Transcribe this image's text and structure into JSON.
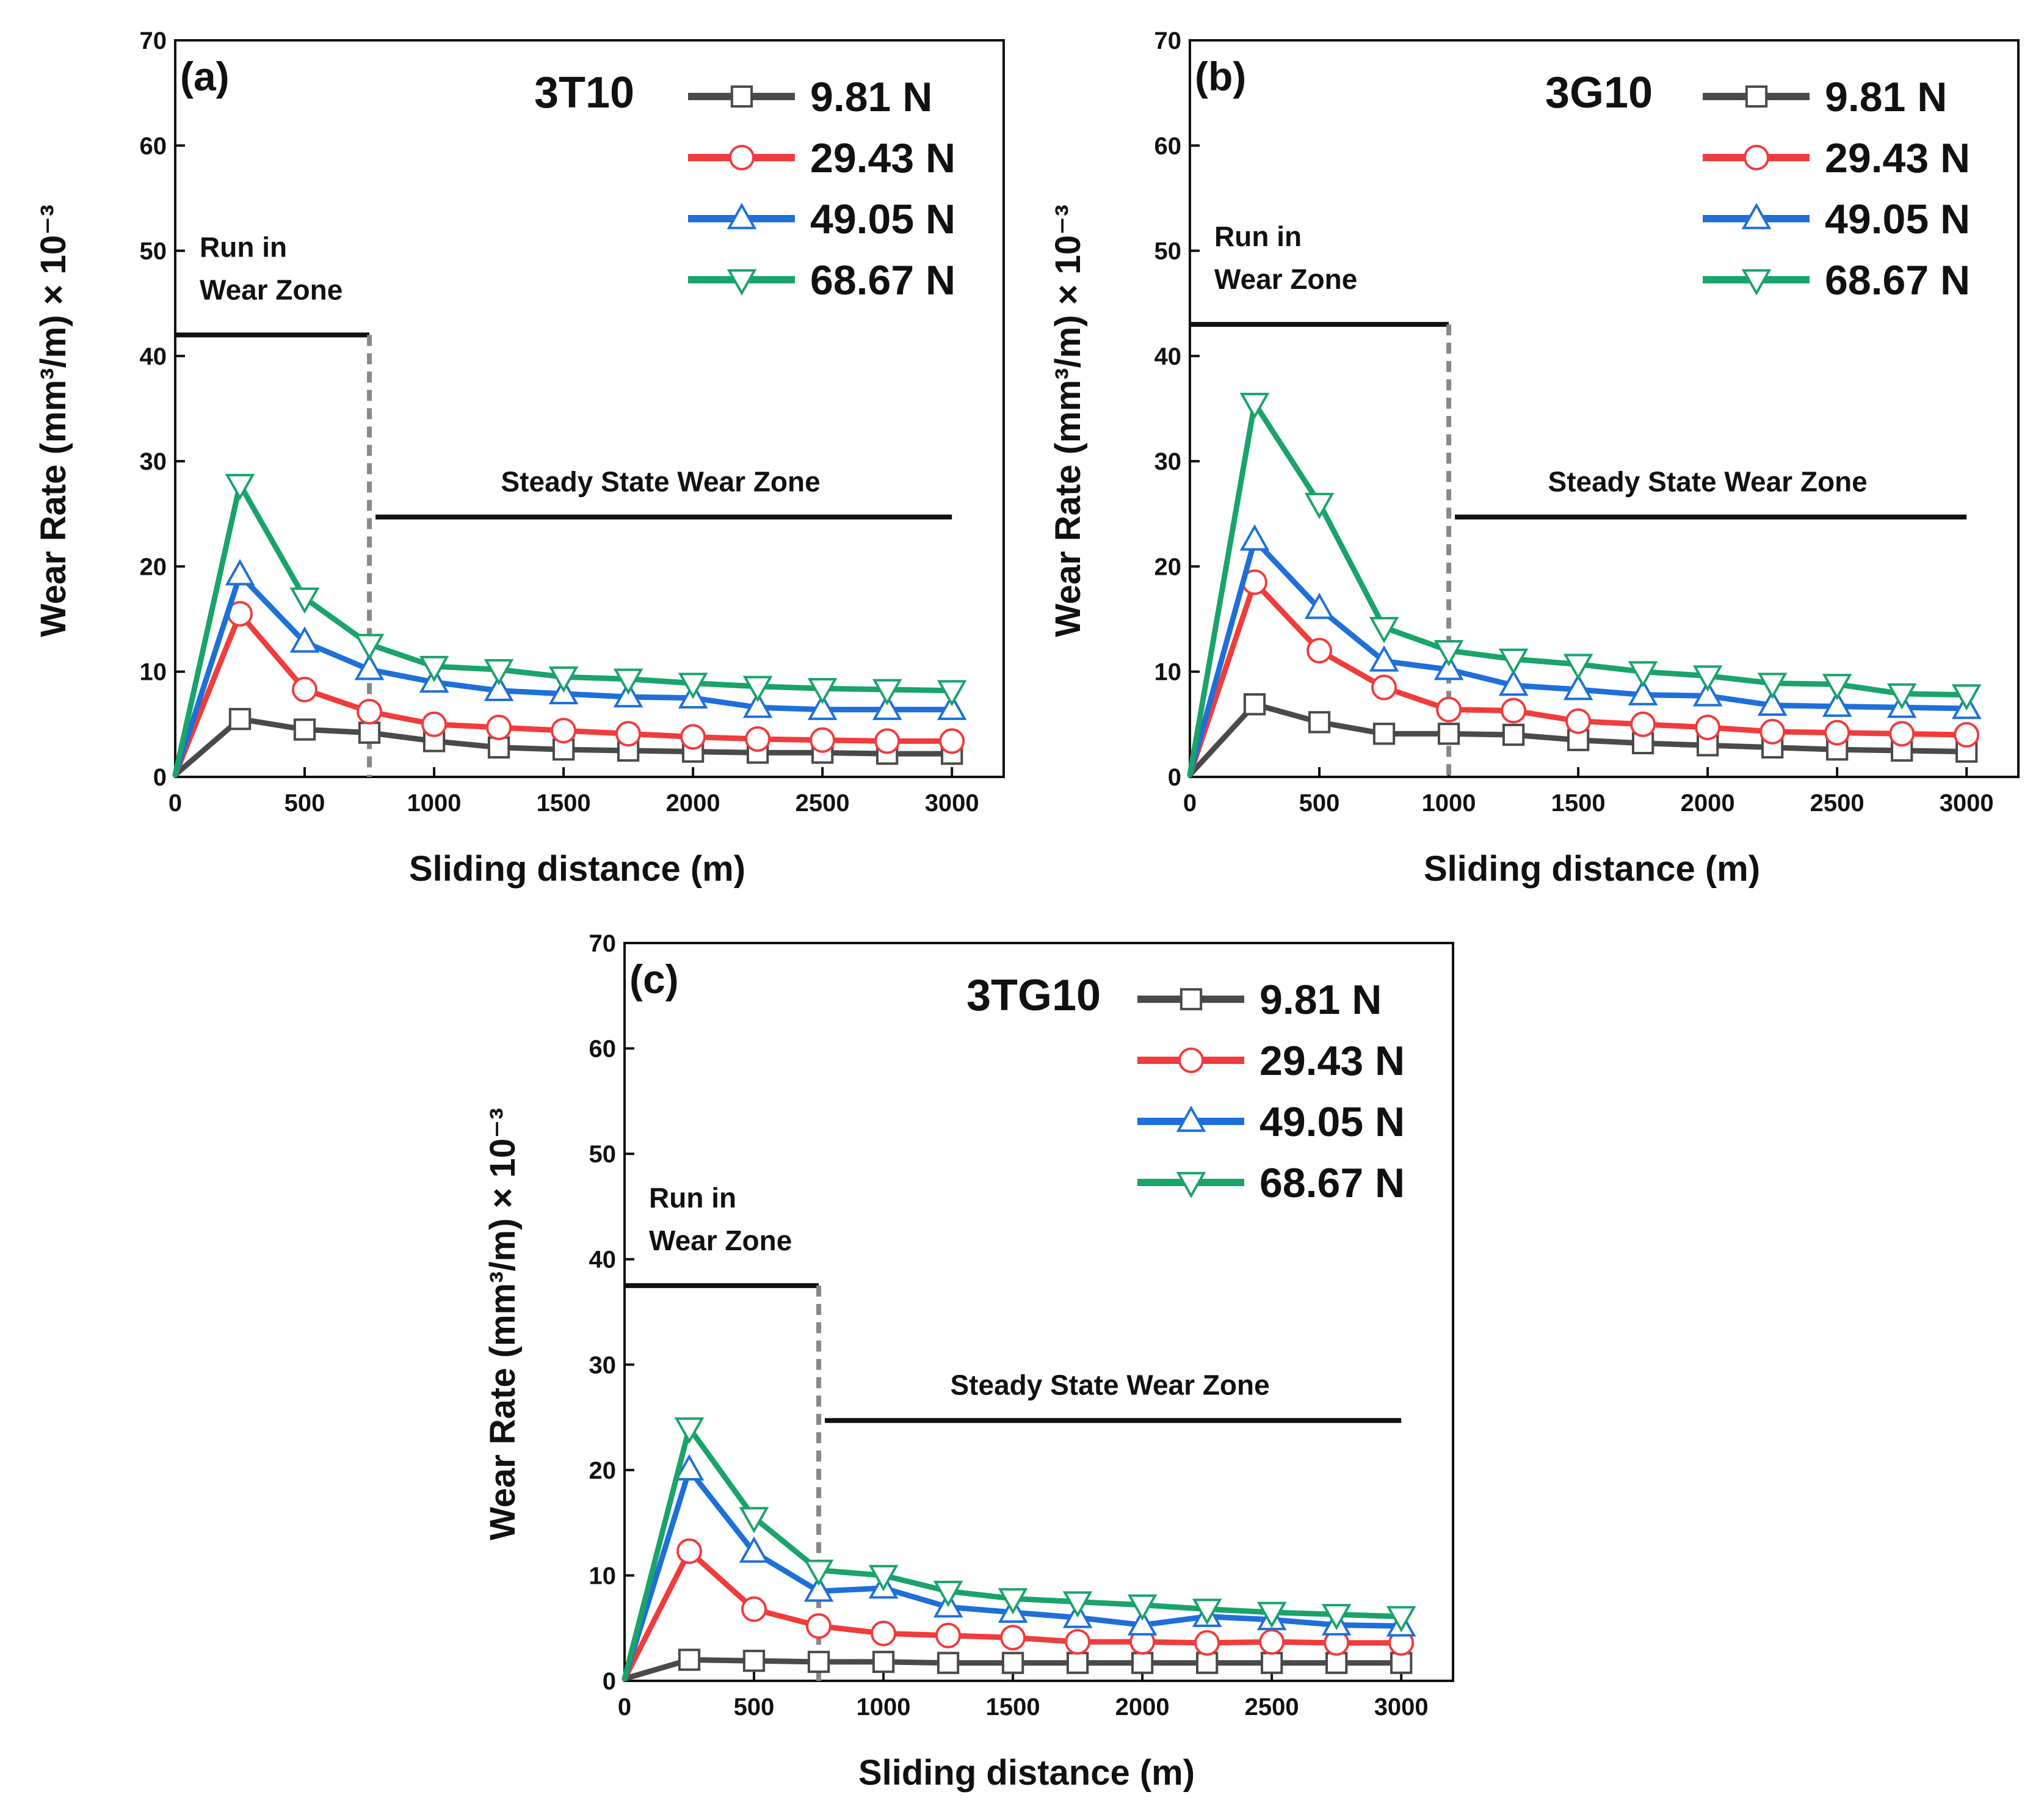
{
  "chart_data": [
    {
      "type": "line",
      "panel_label": "(a)",
      "sample": "3T10",
      "xlabel": "Sliding distance (m)",
      "ylabel": "Wear Rate (mm³/m) × 10⁻³",
      "xlim": [
        0,
        3200
      ],
      "ylim": [
        0,
        70
      ],
      "xticks": [
        0,
        500,
        1000,
        1500,
        2000,
        2500,
        3000
      ],
      "yticks": [
        0,
        10,
        20,
        30,
        40,
        50,
        60,
        70
      ],
      "x": [
        0,
        250,
        500,
        750,
        1000,
        1250,
        1500,
        1750,
        2000,
        2250,
        2500,
        2750,
        3000
      ],
      "series": [
        {
          "name": "9.81 N",
          "color": "#4a4a4a",
          "marker": "square",
          "values": [
            0.2,
            5.5,
            4.5,
            4.2,
            3.4,
            2.8,
            2.6,
            2.5,
            2.4,
            2.3,
            2.3,
            2.2,
            2.2
          ]
        },
        {
          "name": "29.43 N",
          "color": "#f03c3c",
          "marker": "circle",
          "values": [
            0.2,
            15.5,
            8.3,
            6.2,
            5.0,
            4.7,
            4.4,
            4.1,
            3.8,
            3.6,
            3.5,
            3.4,
            3.4
          ]
        },
        {
          "name": "49.05 N",
          "color": "#1e6fd9",
          "marker": "triangle",
          "values": [
            0.2,
            19.2,
            12.8,
            10.2,
            9.0,
            8.2,
            7.9,
            7.6,
            7.5,
            6.6,
            6.4,
            6.4,
            6.4
          ]
        },
        {
          "name": "68.67 N",
          "color": "#1aa36b",
          "marker": "tri-down",
          "values": [
            0.2,
            27.8,
            17.0,
            12.6,
            10.5,
            10.2,
            9.5,
            9.3,
            8.9,
            8.6,
            8.4,
            8.3,
            8.2
          ]
        }
      ],
      "zones": {
        "run_in_label": [
          "Run in",
          "Wear Zone"
        ],
        "steady_label": "Steady State Wear Zone",
        "boundary_x": 750,
        "run_in_line_y": 42,
        "steady_line_y": 24.7,
        "steady_line_end_x": 3000
      }
    },
    {
      "type": "line",
      "panel_label": "(b)",
      "sample": "3G10",
      "xlabel": "Sliding distance (m)",
      "ylabel": "Wear Rate (mm³/m) × 10⁻³",
      "xlim": [
        0,
        3200
      ],
      "ylim": [
        0,
        70
      ],
      "xticks": [
        0,
        500,
        1000,
        1500,
        2000,
        2500,
        3000
      ],
      "yticks": [
        0,
        10,
        20,
        30,
        40,
        50,
        60,
        70
      ],
      "x": [
        0,
        250,
        500,
        750,
        1000,
        1250,
        1500,
        1750,
        2000,
        2250,
        2500,
        2750,
        3000
      ],
      "series": [
        {
          "name": "9.81 N",
          "color": "#4a4a4a",
          "marker": "square",
          "values": [
            0.2,
            6.9,
            5.2,
            4.1,
            4.1,
            4.0,
            3.5,
            3.2,
            3.0,
            2.8,
            2.6,
            2.5,
            2.4
          ]
        },
        {
          "name": "29.43 N",
          "color": "#f03c3c",
          "marker": "circle",
          "values": [
            0.2,
            18.5,
            12.0,
            8.5,
            6.4,
            6.3,
            5.3,
            5.0,
            4.7,
            4.3,
            4.2,
            4.1,
            4.0
          ]
        },
        {
          "name": "49.05 N",
          "color": "#1e6fd9",
          "marker": "triangle",
          "values": [
            0.2,
            22.5,
            16.0,
            11.0,
            10.2,
            8.7,
            8.3,
            7.8,
            7.7,
            6.8,
            6.7,
            6.6,
            6.5
          ]
        },
        {
          "name": "68.67 N",
          "color": "#1aa36b",
          "marker": "tri-down",
          "values": [
            0.2,
            35.5,
            26.0,
            14.2,
            12.0,
            11.2,
            10.7,
            10.0,
            9.6,
            8.9,
            8.8,
            7.9,
            7.8
          ]
        }
      ],
      "zones": {
        "run_in_label": [
          "Run in",
          "Wear Zone"
        ],
        "steady_label": "Steady State Wear Zone",
        "boundary_x": 1000,
        "run_in_line_y": 43,
        "steady_line_y": 24.7,
        "steady_line_end_x": 3000
      }
    },
    {
      "type": "line",
      "panel_label": "(c)",
      "sample": "3TG10",
      "xlabel": "Sliding distance (m)",
      "ylabel": "Wear Rate (mm³/m) × 10⁻³",
      "xlim": [
        0,
        3200
      ],
      "ylim": [
        0,
        70
      ],
      "xticks": [
        0,
        500,
        1000,
        1500,
        2000,
        2500,
        3000
      ],
      "yticks": [
        0,
        10,
        20,
        30,
        40,
        50,
        60,
        70
      ],
      "x": [
        0,
        250,
        500,
        750,
        1000,
        1250,
        1500,
        1750,
        2000,
        2250,
        2500,
        2750,
        3000
      ],
      "series": [
        {
          "name": "9.81 N",
          "color": "#4a4a4a",
          "marker": "square",
          "values": [
            0.2,
            2.0,
            1.9,
            1.8,
            1.8,
            1.7,
            1.7,
            1.7,
            1.7,
            1.7,
            1.7,
            1.7,
            1.7
          ]
        },
        {
          "name": "29.43 N",
          "color": "#f03c3c",
          "marker": "circle",
          "values": [
            0.2,
            12.3,
            6.8,
            5.2,
            4.5,
            4.3,
            4.1,
            3.7,
            3.7,
            3.6,
            3.7,
            3.6,
            3.6
          ]
        },
        {
          "name": "49.05 N",
          "color": "#1e6fd9",
          "marker": "triangle",
          "values": [
            0.2,
            20.0,
            12.2,
            8.5,
            8.8,
            7.0,
            6.5,
            6.0,
            5.3,
            6.1,
            5.8,
            5.3,
            5.2
          ]
        },
        {
          "name": "68.67 N",
          "color": "#1aa36b",
          "marker": "tri-down",
          "values": [
            0.2,
            24.0,
            15.5,
            10.5,
            10.0,
            8.5,
            7.8,
            7.5,
            7.2,
            6.8,
            6.5,
            6.3,
            6.1
          ]
        }
      ],
      "zones": {
        "run_in_label": [
          "Run in",
          "Wear Zone"
        ],
        "steady_label": "Steady State Wear Zone",
        "boundary_x": 750,
        "run_in_line_y": 37.5,
        "steady_line_y": 24.7,
        "steady_line_end_x": 3000
      }
    }
  ]
}
